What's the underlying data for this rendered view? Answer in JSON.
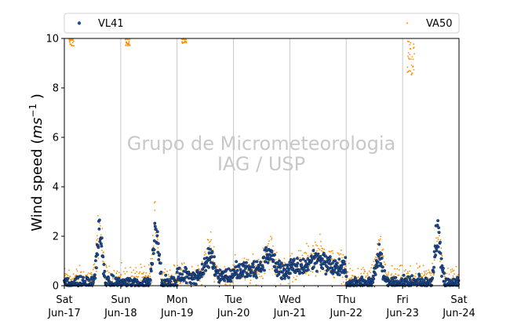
{
  "chart_data": {
    "type": "scatter",
    "ylabel": "Wind speed",
    "ylabel_unit_base": "ms",
    "ylabel_unit_exp": "−1",
    "ylim": [
      0,
      10
    ],
    "yticks": [
      "0",
      "2",
      "4",
      "6",
      "8",
      "10"
    ],
    "xlim": [
      "2017-06-17",
      "2017-06-24"
    ],
    "xtick_days": [
      "Sat",
      "Sun",
      "Mon",
      "Tue",
      "Wed",
      "Thu",
      "Fri",
      "Sat"
    ],
    "xtick_dates": [
      "Jun-17",
      "Jun-18",
      "Jun-19",
      "Jun-20",
      "Jun-21",
      "Jun-22",
      "Jun-23",
      "Jun-24"
    ],
    "grid": "vertical",
    "legend_placement": "top",
    "watermark": [
      "Grupo de Micrometeorologia",
      "IAG / USP"
    ],
    "series": [
      {
        "name": "VL41",
        "color": "#1f4e96",
        "edge_color": "#0d2a55",
        "marker": "circle",
        "daily_peaks": [
          {
            "day": "2017-06-17",
            "peak_hour": 15,
            "peak": 2.1,
            "width": 4,
            "night": 0.1
          },
          {
            "day": "2017-06-18",
            "peak_hour": 15,
            "peak": 2.4,
            "width": 4,
            "night": 0.1
          },
          {
            "day": "2017-06-19",
            "peak_hour": 14,
            "peak": 1.2,
            "width": 6,
            "night": 0.4
          },
          {
            "day": "2017-06-20",
            "peak_hour": 15,
            "peak": 1.3,
            "width": 7,
            "night": 0.6
          },
          {
            "day": "2017-06-21",
            "peak_hour": 12,
            "peak": 1.1,
            "width": 12,
            "night": 0.7
          },
          {
            "day": "2017-06-22",
            "peak_hour": 14,
            "peak": 1.3,
            "width": 5,
            "night": 0.1
          },
          {
            "day": "2017-06-23",
            "peak_hour": 15,
            "peak": 2.3,
            "width": 4,
            "night": 0.1
          }
        ]
      },
      {
        "name": "VA50",
        "color": "#ff8c00",
        "marker": "dot",
        "daily_peaks": [
          {
            "day": "2017-06-17",
            "peak_hour": 15,
            "peak": 2.3,
            "width": 4,
            "night": 0.3
          },
          {
            "day": "2017-06-18",
            "peak_hour": 15,
            "peak": 2.6,
            "width": 4,
            "night": 0.3
          },
          {
            "day": "2017-06-19",
            "peak_hour": 14,
            "peak": 1.5,
            "width": 6,
            "night": 0.4
          },
          {
            "day": "2017-06-20",
            "peak_hour": 15,
            "peak": 1.5,
            "width": 7,
            "night": 0.6
          },
          {
            "day": "2017-06-21",
            "peak_hour": 12,
            "peak": 1.3,
            "width": 12,
            "night": 0.8
          },
          {
            "day": "2017-06-22",
            "peak_hour": 14,
            "peak": 1.4,
            "width": 5,
            "night": 0.3
          },
          {
            "day": "2017-06-23",
            "peak_hour": 15,
            "peak": 2.4,
            "width": 4,
            "night": 0.3
          }
        ],
        "offscale_clusters": [
          {
            "start": "2017-06-17T02:00",
            "end": "2017-06-17T04:00",
            "from": 9.7,
            "to": 10.0
          },
          {
            "start": "2017-06-18T02:00",
            "end": "2017-06-18T04:00",
            "from": 9.7,
            "to": 10.0
          },
          {
            "start": "2017-06-19T02:00",
            "end": "2017-06-19T04:00",
            "from": 9.8,
            "to": 10.0
          },
          {
            "start": "2017-06-23T02:00",
            "end": "2017-06-23T05:00",
            "from": 8.4,
            "to": 9.9
          }
        ]
      }
    ]
  }
}
